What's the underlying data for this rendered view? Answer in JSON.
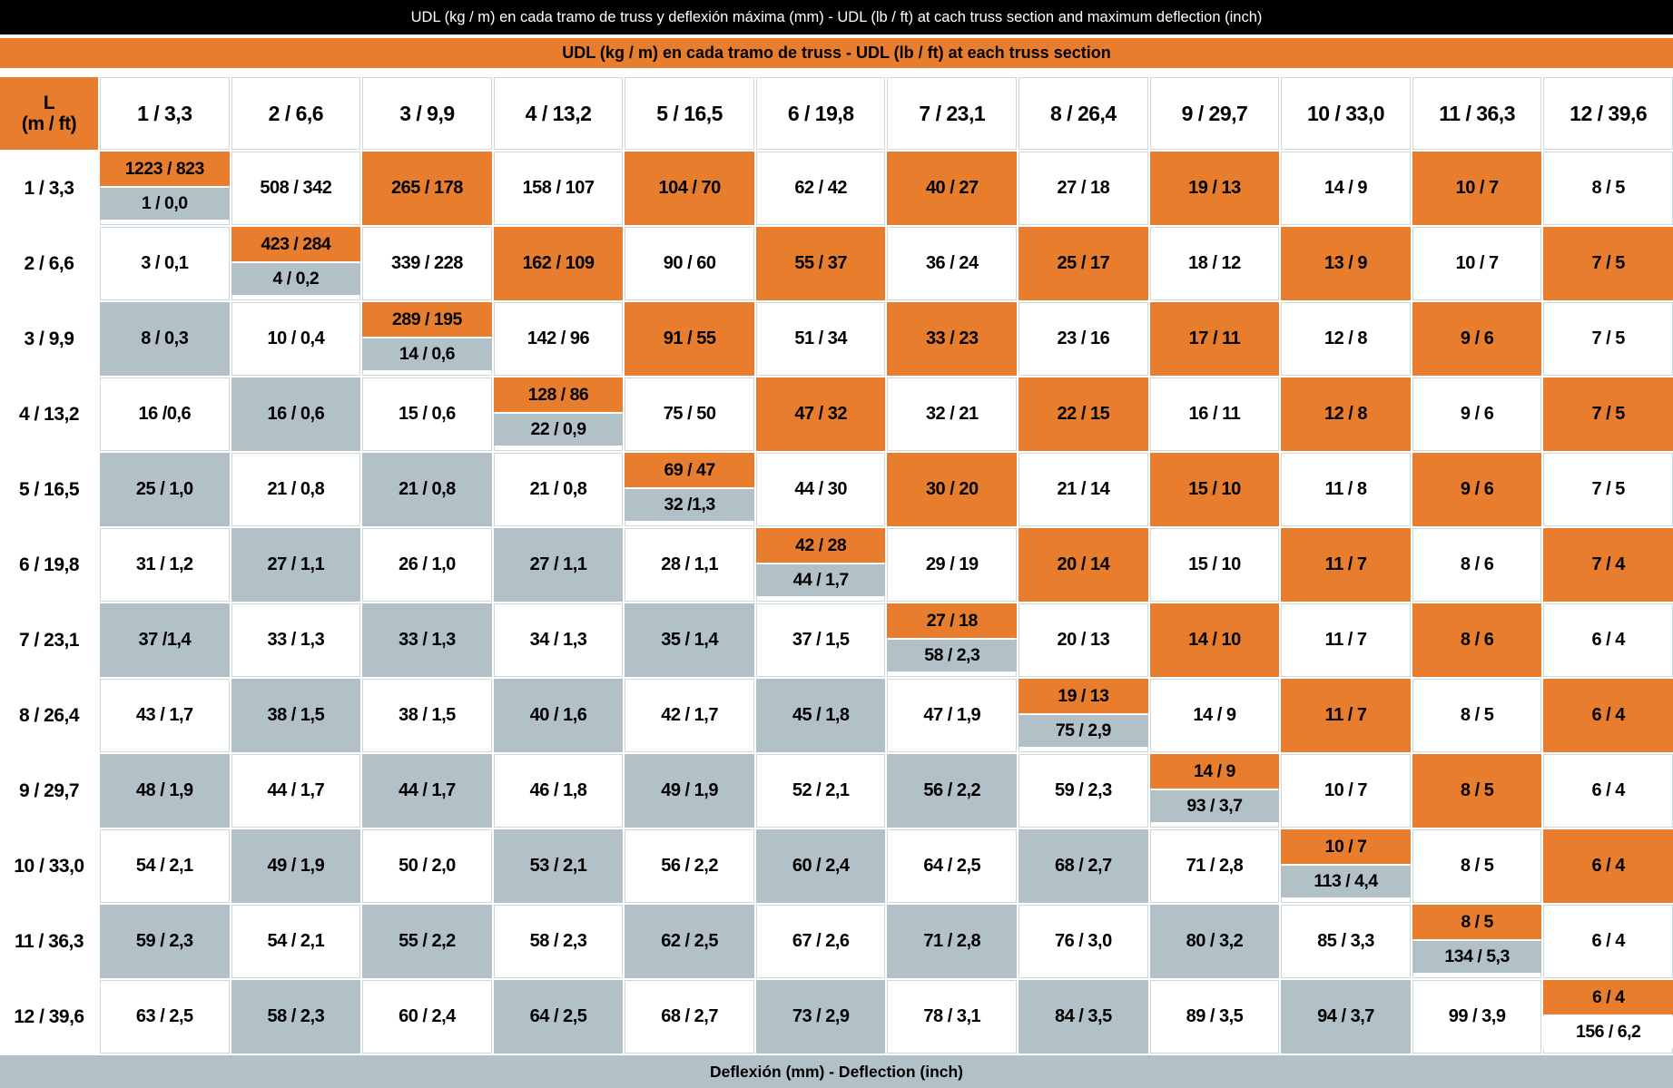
{
  "title_bar": {
    "text": "UDL (kg / m) en cada tramo de truss y deflexión máxima (mm)  -  UDL (lb / ft) at cach truss section and maximum deflection (inch)"
  },
  "udl_band": {
    "text": "UDL (kg / m) en cada tramo de truss - UDL (lb / ft) at each truss section"
  },
  "corner_header": {
    "line1": "L",
    "line2": "(m / ft)"
  },
  "columns": [
    "1 / 3,3",
    "2 / 6,6",
    "3 / 9,9",
    "4 / 13,2",
    "5 / 16,5",
    "6 / 19,8",
    "7 / 23,1",
    "8 / 26,4",
    "9 / 29,7",
    "10 / 33,0",
    "11 / 36,3",
    "12 / 39,6"
  ],
  "rows": [
    {
      "label": "1 / 3,3",
      "cells": [
        {
          "split": true,
          "udl": "1223 / 823",
          "defl": "1 / 0,0",
          "defl_bg": "gray"
        },
        {
          "text": "508 / 342",
          "bg": "white"
        },
        {
          "text": "265 / 178",
          "bg": "orange"
        },
        {
          "text": "158 / 107",
          "bg": "white"
        },
        {
          "text": "104 / 70",
          "bg": "orange"
        },
        {
          "text": "62 / 42",
          "bg": "white"
        },
        {
          "text": "40 / 27",
          "bg": "orange"
        },
        {
          "text": "27 / 18",
          "bg": "white"
        },
        {
          "text": "19 / 13",
          "bg": "orange"
        },
        {
          "text": "14 / 9",
          "bg": "white"
        },
        {
          "text": "10 / 7",
          "bg": "orange"
        },
        {
          "text": "8 / 5",
          "bg": "white"
        }
      ]
    },
    {
      "label": "2 / 6,6",
      "cells": [
        {
          "text": "3 / 0,1",
          "bg": "white"
        },
        {
          "split": true,
          "udl": "423 / 284",
          "defl": "4 / 0,2",
          "defl_bg": "gray"
        },
        {
          "text": "339 / 228",
          "bg": "white"
        },
        {
          "text": "162 / 109",
          "bg": "orange"
        },
        {
          "text": "90 / 60",
          "bg": "white"
        },
        {
          "text": "55 / 37",
          "bg": "orange"
        },
        {
          "text": "36 / 24",
          "bg": "white"
        },
        {
          "text": "25 / 17",
          "bg": "orange"
        },
        {
          "text": "18 / 12",
          "bg": "white"
        },
        {
          "text": "13 / 9",
          "bg": "orange"
        },
        {
          "text": "10 / 7",
          "bg": "white"
        },
        {
          "text": "7 / 5",
          "bg": "orange"
        }
      ]
    },
    {
      "label": "3 / 9,9",
      "cells": [
        {
          "text": "8 / 0,3",
          "bg": "gray"
        },
        {
          "text": "10 / 0,4",
          "bg": "white"
        },
        {
          "split": true,
          "udl": "289 / 195",
          "defl": "14 / 0,6",
          "defl_bg": "gray"
        },
        {
          "text": "142 / 96",
          "bg": "white"
        },
        {
          "text": "91 / 55",
          "bg": "orange"
        },
        {
          "text": "51 / 34",
          "bg": "white"
        },
        {
          "text": "33 / 23",
          "bg": "orange"
        },
        {
          "text": "23 / 16",
          "bg": "white"
        },
        {
          "text": "17 / 11",
          "bg": "orange"
        },
        {
          "text": "12 / 8",
          "bg": "white"
        },
        {
          "text": "9 / 6",
          "bg": "orange"
        },
        {
          "text": "7 / 5",
          "bg": "white"
        }
      ]
    },
    {
      "label": "4 / 13,2",
      "cells": [
        {
          "text": "16 /0,6",
          "bg": "white"
        },
        {
          "text": "16 / 0,6",
          "bg": "gray"
        },
        {
          "text": "15 / 0,6",
          "bg": "white"
        },
        {
          "split": true,
          "udl": "128 / 86",
          "defl": "22 / 0,9",
          "defl_bg": "gray"
        },
        {
          "text": "75 / 50",
          "bg": "white"
        },
        {
          "text": "47 / 32",
          "bg": "orange"
        },
        {
          "text": "32 / 21",
          "bg": "white"
        },
        {
          "text": "22 / 15",
          "bg": "orange"
        },
        {
          "text": "16 / 11",
          "bg": "white"
        },
        {
          "text": "12 / 8",
          "bg": "orange"
        },
        {
          "text": "9 / 6",
          "bg": "white"
        },
        {
          "text": "7 / 5",
          "bg": "orange"
        }
      ]
    },
    {
      "label": "5 / 16,5",
      "cells": [
        {
          "text": "25 / 1,0",
          "bg": "gray"
        },
        {
          "text": "21 / 0,8",
          "bg": "white"
        },
        {
          "text": "21 / 0,8",
          "bg": "gray"
        },
        {
          "text": "21 / 0,8",
          "bg": "white"
        },
        {
          "split": true,
          "udl": "69 / 47",
          "defl": "32 /1,3",
          "defl_bg": "gray"
        },
        {
          "text": "44 / 30",
          "bg": "white"
        },
        {
          "text": "30 / 20",
          "bg": "orange"
        },
        {
          "text": "21 / 14",
          "bg": "white"
        },
        {
          "text": "15 / 10",
          "bg": "orange"
        },
        {
          "text": "11 / 8",
          "bg": "white"
        },
        {
          "text": "9 / 6",
          "bg": "orange"
        },
        {
          "text": "7 / 5",
          "bg": "white"
        }
      ]
    },
    {
      "label": "6 / 19,8",
      "cells": [
        {
          "text": "31 / 1,2",
          "bg": "white"
        },
        {
          "text": "27 / 1,1",
          "bg": "gray"
        },
        {
          "text": "26 / 1,0",
          "bg": "white"
        },
        {
          "text": "27 / 1,1",
          "bg": "gray"
        },
        {
          "text": "28 / 1,1",
          "bg": "white"
        },
        {
          "split": true,
          "udl": "42 / 28",
          "defl": "44 / 1,7",
          "defl_bg": "gray"
        },
        {
          "text": "29 / 19",
          "bg": "white"
        },
        {
          "text": "20 / 14",
          "bg": "orange"
        },
        {
          "text": "15 / 10",
          "bg": "white"
        },
        {
          "text": "11 / 7",
          "bg": "orange"
        },
        {
          "text": "8 / 6",
          "bg": "white"
        },
        {
          "text": "7 / 4",
          "bg": "orange"
        }
      ]
    },
    {
      "label": "7 / 23,1",
      "cells": [
        {
          "text": "37 /1,4",
          "bg": "gray"
        },
        {
          "text": "33 / 1,3",
          "bg": "white"
        },
        {
          "text": "33 / 1,3",
          "bg": "gray"
        },
        {
          "text": "34 / 1,3",
          "bg": "white"
        },
        {
          "text": "35 / 1,4",
          "bg": "gray"
        },
        {
          "text": "37 / 1,5",
          "bg": "white"
        },
        {
          "split": true,
          "udl": "27 / 18",
          "defl": "58 / 2,3",
          "defl_bg": "gray"
        },
        {
          "text": "20 / 13",
          "bg": "white"
        },
        {
          "text": "14 / 10",
          "bg": "orange"
        },
        {
          "text": "11 / 7",
          "bg": "white"
        },
        {
          "text": "8 / 6",
          "bg": "orange"
        },
        {
          "text": "6 / 4",
          "bg": "white"
        }
      ]
    },
    {
      "label": "8 / 26,4",
      "cells": [
        {
          "text": "43 / 1,7",
          "bg": "white"
        },
        {
          "text": "38 / 1,5",
          "bg": "gray"
        },
        {
          "text": "38 / 1,5",
          "bg": "white"
        },
        {
          "text": "40 / 1,6",
          "bg": "gray"
        },
        {
          "text": "42 / 1,7",
          "bg": "white"
        },
        {
          "text": "45 / 1,8",
          "bg": "gray"
        },
        {
          "text": "47 / 1,9",
          "bg": "white"
        },
        {
          "split": true,
          "udl": "19 / 13",
          "defl": "75 / 2,9",
          "defl_bg": "gray"
        },
        {
          "text": "14 / 9",
          "bg": "white"
        },
        {
          "text": "11 / 7",
          "bg": "orange"
        },
        {
          "text": "8 / 5",
          "bg": "white"
        },
        {
          "text": "6 / 4",
          "bg": "orange"
        }
      ]
    },
    {
      "label": "9 / 29,7",
      "cells": [
        {
          "text": "48 / 1,9",
          "bg": "gray"
        },
        {
          "text": "44 / 1,7",
          "bg": "white"
        },
        {
          "text": "44 / 1,7",
          "bg": "gray"
        },
        {
          "text": "46 / 1,8",
          "bg": "white"
        },
        {
          "text": "49 / 1,9",
          "bg": "gray"
        },
        {
          "text": "52 / 2,1",
          "bg": "white"
        },
        {
          "text": "56 / 2,2",
          "bg": "gray"
        },
        {
          "text": "59 / 2,3",
          "bg": "white"
        },
        {
          "split": true,
          "udl": "14 / 9",
          "defl": "93 / 3,7",
          "defl_bg": "gray"
        },
        {
          "text": "10 / 7",
          "bg": "white"
        },
        {
          "text": "8 / 5",
          "bg": "orange"
        },
        {
          "text": "6 / 4",
          "bg": "white"
        }
      ]
    },
    {
      "label": "10 / 33,0",
      "cells": [
        {
          "text": "54 / 2,1",
          "bg": "white"
        },
        {
          "text": "49 / 1,9",
          "bg": "gray"
        },
        {
          "text": "50 / 2,0",
          "bg": "white"
        },
        {
          "text": "53 / 2,1",
          "bg": "gray"
        },
        {
          "text": "56 / 2,2",
          "bg": "white"
        },
        {
          "text": "60 / 2,4",
          "bg": "gray"
        },
        {
          "text": "64 / 2,5",
          "bg": "white"
        },
        {
          "text": "68 / 2,7",
          "bg": "gray"
        },
        {
          "text": "71 / 2,8",
          "bg": "white"
        },
        {
          "split": true,
          "udl": "10 / 7",
          "defl": "113 / 4,4",
          "defl_bg": "gray"
        },
        {
          "text": "8 / 5",
          "bg": "white"
        },
        {
          "text": "6 / 4",
          "bg": "orange"
        }
      ]
    },
    {
      "label": "11 / 36,3",
      "cells": [
        {
          "text": "59 / 2,3",
          "bg": "gray"
        },
        {
          "text": "54 / 2,1",
          "bg": "white"
        },
        {
          "text": "55 / 2,2",
          "bg": "gray"
        },
        {
          "text": "58 / 2,3",
          "bg": "white"
        },
        {
          "text": "62 / 2,5",
          "bg": "gray"
        },
        {
          "text": "67 / 2,6",
          "bg": "white"
        },
        {
          "text": "71 / 2,8",
          "bg": "gray"
        },
        {
          "text": "76 / 3,0",
          "bg": "white"
        },
        {
          "text": "80 / 3,2",
          "bg": "gray"
        },
        {
          "text": "85 / 3,3",
          "bg": "white"
        },
        {
          "split": true,
          "udl": "8 / 5",
          "defl": "134 / 5,3",
          "defl_bg": "gray"
        },
        {
          "text": "6 / 4",
          "bg": "white"
        }
      ]
    },
    {
      "label": "12 / 39,6",
      "cells": [
        {
          "text": "63 / 2,5",
          "bg": "white"
        },
        {
          "text": "58 / 2,3",
          "bg": "gray"
        },
        {
          "text": "60 / 2,4",
          "bg": "white"
        },
        {
          "text": "64 / 2,5",
          "bg": "gray"
        },
        {
          "text": "68 / 2,7",
          "bg": "white"
        },
        {
          "text": "73 / 2,9",
          "bg": "gray"
        },
        {
          "text": "78 / 3,1",
          "bg": "white"
        },
        {
          "text": "84 / 3,5",
          "bg": "gray"
        },
        {
          "text": "89 / 3,5",
          "bg": "white"
        },
        {
          "text": "94 / 3,7",
          "bg": "gray"
        },
        {
          "text": "99 / 3,9",
          "bg": "white"
        },
        {
          "split": true,
          "udl": "6 / 4",
          "defl": "156 / 6,2",
          "defl_bg": "white"
        }
      ]
    }
  ],
  "footer": {
    "text": "Deflexión (mm) - Deflection (inch)"
  },
  "colors": {
    "orange": "#E87E2D",
    "gray": "#B2C1C7",
    "title_bg": "#000000"
  }
}
